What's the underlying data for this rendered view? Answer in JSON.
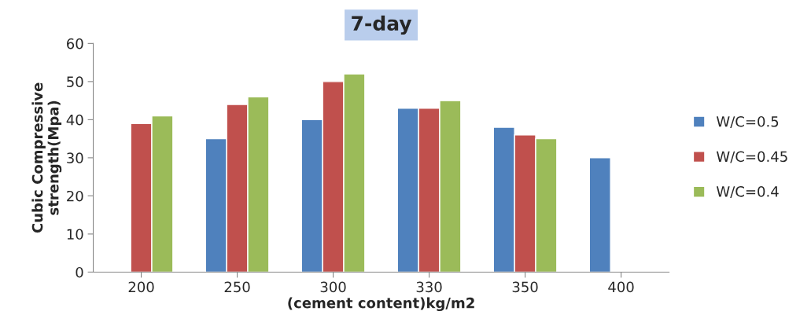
{
  "chart_data": {
    "type": "bar",
    "title": "7-day",
    "xlabel": "(cement content)kg/m2",
    "ylabel": "Cubic Compressive\nstrength(Mpa)",
    "categories": [
      "200",
      "250",
      "300",
      "330",
      "350",
      "400"
    ],
    "series": [
      {
        "name": "W/C=0.5",
        "color": "#4f81bd",
        "values": [
          null,
          35,
          40,
          43,
          38,
          30
        ]
      },
      {
        "name": "W/C=0.45",
        "color": "#c0504d",
        "values": [
          39,
          44,
          50,
          43,
          36,
          null
        ]
      },
      {
        "name": "W/C=0.4",
        "color": "#9bbb59",
        "values": [
          41,
          46,
          52,
          45,
          35,
          null
        ]
      }
    ],
    "ylim": [
      0,
      60
    ],
    "yticks": [
      0,
      10,
      20,
      30,
      40,
      50,
      60
    ],
    "grid": false,
    "legend": "right"
  }
}
